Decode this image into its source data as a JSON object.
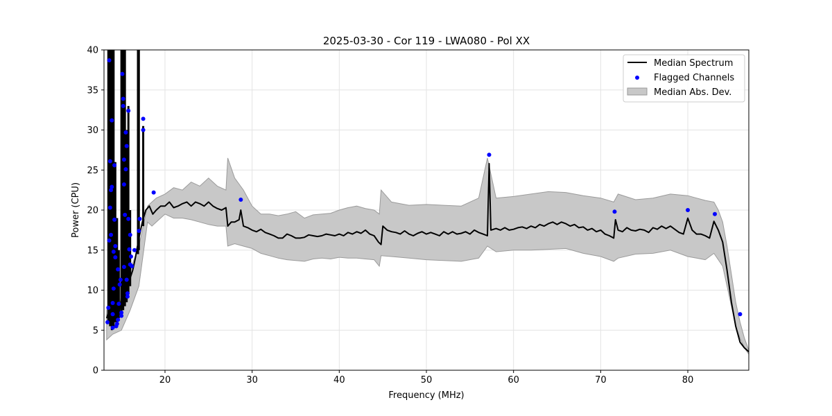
{
  "chart_data": {
    "type": "line",
    "title": "2025-03-30 - Cor 119 - LWA080 - Pol XX",
    "xlabel": "Frequency (MHz)",
    "ylabel": "Power (CPU)",
    "xlim": [
      13.0,
      87.0
    ],
    "ylim": [
      0,
      40
    ],
    "xticks": [
      20,
      30,
      40,
      50,
      60,
      70,
      80
    ],
    "yticks": [
      0,
      5,
      10,
      15,
      20,
      25,
      30,
      35,
      40
    ],
    "grid": true,
    "legend_position": "upper right",
    "series": [
      {
        "name": "Median Spectrum",
        "kind": "line",
        "color": "#000000",
        "x": [
          13.3,
          13.6,
          13.9,
          14.2,
          14.5,
          14.8,
          15.1,
          15.4,
          15.7,
          16.0,
          16.3,
          16.6,
          17.0,
          17.4,
          17.8,
          18.2,
          18.6,
          19.0,
          19.5,
          20.0,
          20.5,
          21.0,
          21.5,
          22.0,
          22.5,
          23.0,
          23.5,
          24.0,
          24.5,
          25.0,
          25.5,
          26.0,
          26.5,
          27.0,
          27.2,
          27.6,
          28.0,
          28.5,
          28.7,
          29.0,
          29.5,
          30.0,
          30.5,
          31.0,
          31.5,
          32.0,
          32.5,
          33.0,
          33.5,
          34.0,
          34.5,
          35.0,
          35.5,
          36.0,
          36.5,
          37.0,
          37.5,
          38.0,
          38.5,
          39.0,
          39.5,
          40.0,
          40.5,
          41.0,
          41.5,
          42.0,
          42.5,
          43.0,
          43.5,
          44.0,
          44.5,
          44.8,
          45.0,
          45.5,
          46.0,
          46.5,
          47.0,
          47.5,
          48.0,
          48.5,
          49.0,
          49.5,
          50.0,
          50.5,
          51.0,
          51.5,
          52.0,
          52.5,
          53.0,
          53.5,
          54.0,
          54.5,
          55.0,
          55.5,
          56.0,
          56.5,
          57.0,
          57.2,
          57.4,
          58.0,
          58.5,
          59.0,
          59.5,
          60.0,
          60.5,
          61.0,
          61.5,
          62.0,
          62.5,
          63.0,
          63.5,
          64.0,
          64.5,
          65.0,
          65.5,
          66.0,
          66.5,
          67.0,
          67.5,
          68.0,
          68.5,
          69.0,
          69.5,
          70.0,
          70.5,
          71.0,
          71.5,
          71.7,
          72.0,
          72.5,
          73.0,
          73.5,
          74.0,
          74.5,
          75.0,
          75.5,
          76.0,
          76.5,
          77.0,
          77.5,
          78.0,
          78.5,
          79.0,
          79.5,
          80.0,
          80.5,
          81.0,
          81.5,
          82.0,
          82.5,
          83.0,
          83.5,
          84.0,
          84.5,
          85.0,
          85.5,
          86.0,
          86.5,
          87.0
        ],
        "y": [
          6.5,
          7.5,
          9.5,
          6.5,
          6.0,
          7.5,
          10.0,
          9.5,
          10.5,
          11.5,
          12.5,
          14.0,
          16.5,
          18.5,
          20.0,
          20.5,
          19.5,
          20.0,
          20.5,
          20.5,
          21.0,
          20.3,
          20.5,
          20.8,
          21.0,
          20.5,
          21.0,
          20.8,
          20.5,
          21.0,
          20.5,
          20.2,
          20.0,
          20.3,
          18.0,
          18.5,
          18.5,
          18.8,
          20.0,
          18.0,
          17.8,
          17.5,
          17.3,
          17.6,
          17.2,
          17.0,
          16.8,
          16.5,
          16.5,
          17.0,
          16.8,
          16.5,
          16.5,
          16.6,
          16.9,
          16.8,
          16.7,
          16.8,
          17.0,
          16.9,
          16.8,
          17.0,
          16.8,
          17.2,
          17.0,
          17.3,
          17.1,
          17.5,
          17.0,
          16.8,
          16.0,
          15.7,
          18.0,
          17.5,
          17.3,
          17.2,
          17.0,
          17.4,
          17.0,
          16.8,
          17.1,
          17.3,
          17.0,
          17.2,
          17.0,
          16.8,
          17.3,
          17.0,
          17.3,
          17.0,
          17.1,
          17.3,
          17.0,
          17.5,
          17.2,
          17.0,
          16.8,
          25.8,
          17.5,
          17.7,
          17.5,
          17.8,
          17.5,
          17.6,
          17.8,
          17.9,
          17.7,
          18.0,
          17.8,
          18.2,
          18.0,
          18.3,
          18.5,
          18.2,
          18.5,
          18.3,
          18.0,
          18.2,
          17.8,
          17.9,
          17.5,
          17.7,
          17.3,
          17.5,
          17.0,
          16.8,
          16.5,
          18.8,
          17.5,
          17.3,
          17.8,
          17.5,
          17.4,
          17.6,
          17.5,
          17.2,
          17.8,
          17.6,
          18.0,
          17.7,
          18.0,
          17.6,
          17.2,
          17.0,
          19.0,
          17.5,
          17.0,
          17.0,
          16.8,
          16.5,
          18.6,
          17.5,
          16.0,
          12.5,
          8.5,
          5.5,
          3.5,
          2.8,
          2.3
        ],
        "spikes": [
          {
            "x": 13.5,
            "ymin": 6.0,
            "ymax": 40
          },
          {
            "x": 13.7,
            "ymin": 5.5,
            "ymax": 40
          },
          {
            "x": 13.9,
            "ymin": 5.0,
            "ymax": 40
          },
          {
            "x": 14.1,
            "ymin": 5.5,
            "ymax": 40
          },
          {
            "x": 14.3,
            "ymin": 6.0,
            "ymax": 26.0
          },
          {
            "x": 14.5,
            "ymin": 6.0,
            "ymax": 19.0
          },
          {
            "x": 14.7,
            "ymin": 6.5,
            "ymax": 15.0
          },
          {
            "x": 15.0,
            "ymin": 7.0,
            "ymax": 40
          },
          {
            "x": 15.2,
            "ymin": 7.5,
            "ymax": 40
          },
          {
            "x": 15.4,
            "ymin": 8.0,
            "ymax": 40
          },
          {
            "x": 15.6,
            "ymin": 8.5,
            "ymax": 30.0
          },
          {
            "x": 15.8,
            "ymin": 9.5,
            "ymax": 33.0
          },
          {
            "x": 16.0,
            "ymin": 10.5,
            "ymax": 20.0
          },
          {
            "x": 16.9,
            "ymin": 14.5,
            "ymax": 40
          },
          {
            "x": 17.0,
            "ymin": 15.0,
            "ymax": 40
          },
          {
            "x": 17.5,
            "ymin": 18.0,
            "ymax": 30.5
          }
        ]
      },
      {
        "name": "Flagged Channels",
        "kind": "scatter",
        "color": "#0000ff",
        "points": [
          [
            13.4,
            6.0
          ],
          [
            13.5,
            7.8
          ],
          [
            13.6,
            16.2
          ],
          [
            13.6,
            38.7
          ],
          [
            13.7,
            20.3
          ],
          [
            13.7,
            26.1
          ],
          [
            13.8,
            22.5
          ],
          [
            13.8,
            16.9
          ],
          [
            13.9,
            31.2
          ],
          [
            13.9,
            22.9
          ],
          [
            14.0,
            5.3
          ],
          [
            14.0,
            7.0
          ],
          [
            14.0,
            8.4
          ],
          [
            14.1,
            10.2
          ],
          [
            14.1,
            14.8
          ],
          [
            14.2,
            18.8
          ],
          [
            14.2,
            25.6
          ],
          [
            14.3,
            15.5
          ],
          [
            14.3,
            14.1
          ],
          [
            14.4,
            5.5
          ],
          [
            14.5,
            5.8
          ],
          [
            14.6,
            6.3
          ],
          [
            14.6,
            12.6
          ],
          [
            14.7,
            8.3
          ],
          [
            14.8,
            10.7
          ],
          [
            14.9,
            11.3
          ],
          [
            15.0,
            6.8
          ],
          [
            15.0,
            7.2
          ],
          [
            15.1,
            37.0
          ],
          [
            15.2,
            33.9
          ],
          [
            15.2,
            33.0
          ],
          [
            15.3,
            26.3
          ],
          [
            15.3,
            23.2
          ],
          [
            15.3,
            12.9
          ],
          [
            15.4,
            19.4
          ],
          [
            15.5,
            25.1
          ],
          [
            15.5,
            29.7
          ],
          [
            15.6,
            28.0
          ],
          [
            15.6,
            11.3
          ],
          [
            15.7,
            9.2
          ],
          [
            15.7,
            9.6
          ],
          [
            15.8,
            18.9
          ],
          [
            15.8,
            32.4
          ],
          [
            15.9,
            15.1
          ],
          [
            16.0,
            13.2
          ],
          [
            16.0,
            16.9
          ],
          [
            16.1,
            14.2
          ],
          [
            16.2,
            13.0
          ],
          [
            16.5,
            15.0
          ],
          [
            17.0,
            17.4
          ],
          [
            17.1,
            18.9
          ],
          [
            17.5,
            31.4
          ],
          [
            17.5,
            30.0
          ],
          [
            18.7,
            22.2
          ],
          [
            28.7,
            21.3
          ],
          [
            57.2,
            26.9
          ],
          [
            71.6,
            19.8
          ],
          [
            80.0,
            20.0
          ],
          [
            83.1,
            19.5
          ],
          [
            86.0,
            7.0
          ]
        ]
      },
      {
        "name": "Median Abs. Dev.",
        "kind": "band",
        "color": "#c8c8c8",
        "x": [
          13.3,
          14.0,
          15.0,
          16.0,
          17.0,
          18.0,
          18.5,
          19.0,
          20.0,
          21.0,
          22.0,
          23.0,
          24.0,
          25.0,
          26.0,
          27.0,
          27.2,
          28.0,
          29.0,
          30.0,
          31.0,
          32.0,
          33.0,
          34.0,
          35.0,
          36.0,
          37.0,
          38.0,
          39.0,
          40.0,
          41.0,
          42.0,
          43.0,
          44.0,
          44.6,
          44.8,
          46.0,
          48.0,
          50.0,
          52.0,
          54.0,
          56.0,
          57.0,
          58.0,
          60.0,
          62.0,
          64.0,
          66.0,
          68.0,
          70.0,
          71.5,
          72.0,
          74.0,
          76.0,
          78.0,
          80.0,
          81.0,
          82.0,
          83.0,
          83.5,
          84.0,
          84.5,
          85.0,
          85.5,
          86.0,
          86.5,
          87.0
        ],
        "upper": [
          7.5,
          9.0,
          11.0,
          12.5,
          15.5,
          20.5,
          21.0,
          21.5,
          22.0,
          22.8,
          22.5,
          23.5,
          23.0,
          24.0,
          23.0,
          22.5,
          26.5,
          24.0,
          22.5,
          20.5,
          19.5,
          19.5,
          19.3,
          19.5,
          19.8,
          19.0,
          19.4,
          19.5,
          19.6,
          20.0,
          20.3,
          20.5,
          20.2,
          20.0,
          19.5,
          22.5,
          21.0,
          20.6,
          20.7,
          20.6,
          20.5,
          21.5,
          26.5,
          21.5,
          21.7,
          22.0,
          22.3,
          22.2,
          21.8,
          21.5,
          21.0,
          22.0,
          21.3,
          21.5,
          22.0,
          21.8,
          21.5,
          21.2,
          21.0,
          20.0,
          18.5,
          15.5,
          12.0,
          8.5,
          6.0,
          4.0,
          2.5
        ],
        "lower": [
          3.8,
          4.5,
          5.0,
          7.5,
          10.5,
          18.5,
          18.0,
          18.5,
          19.5,
          19.0,
          19.0,
          18.8,
          18.5,
          18.2,
          18.0,
          18.0,
          15.5,
          15.8,
          15.5,
          15.2,
          14.6,
          14.3,
          14.0,
          13.8,
          13.7,
          13.6,
          13.9,
          14.0,
          13.9,
          14.1,
          14.0,
          14.0,
          13.9,
          13.8,
          13.0,
          14.3,
          14.2,
          14.0,
          13.8,
          13.7,
          13.6,
          14.0,
          15.5,
          14.8,
          15.0,
          15.0,
          15.1,
          15.2,
          14.6,
          14.2,
          13.6,
          14.0,
          14.5,
          14.6,
          15.0,
          14.2,
          14.0,
          13.8,
          14.6,
          13.8,
          13.0,
          10.5,
          8.0,
          5.5,
          4.0,
          2.8,
          2.0
        ]
      }
    ]
  }
}
